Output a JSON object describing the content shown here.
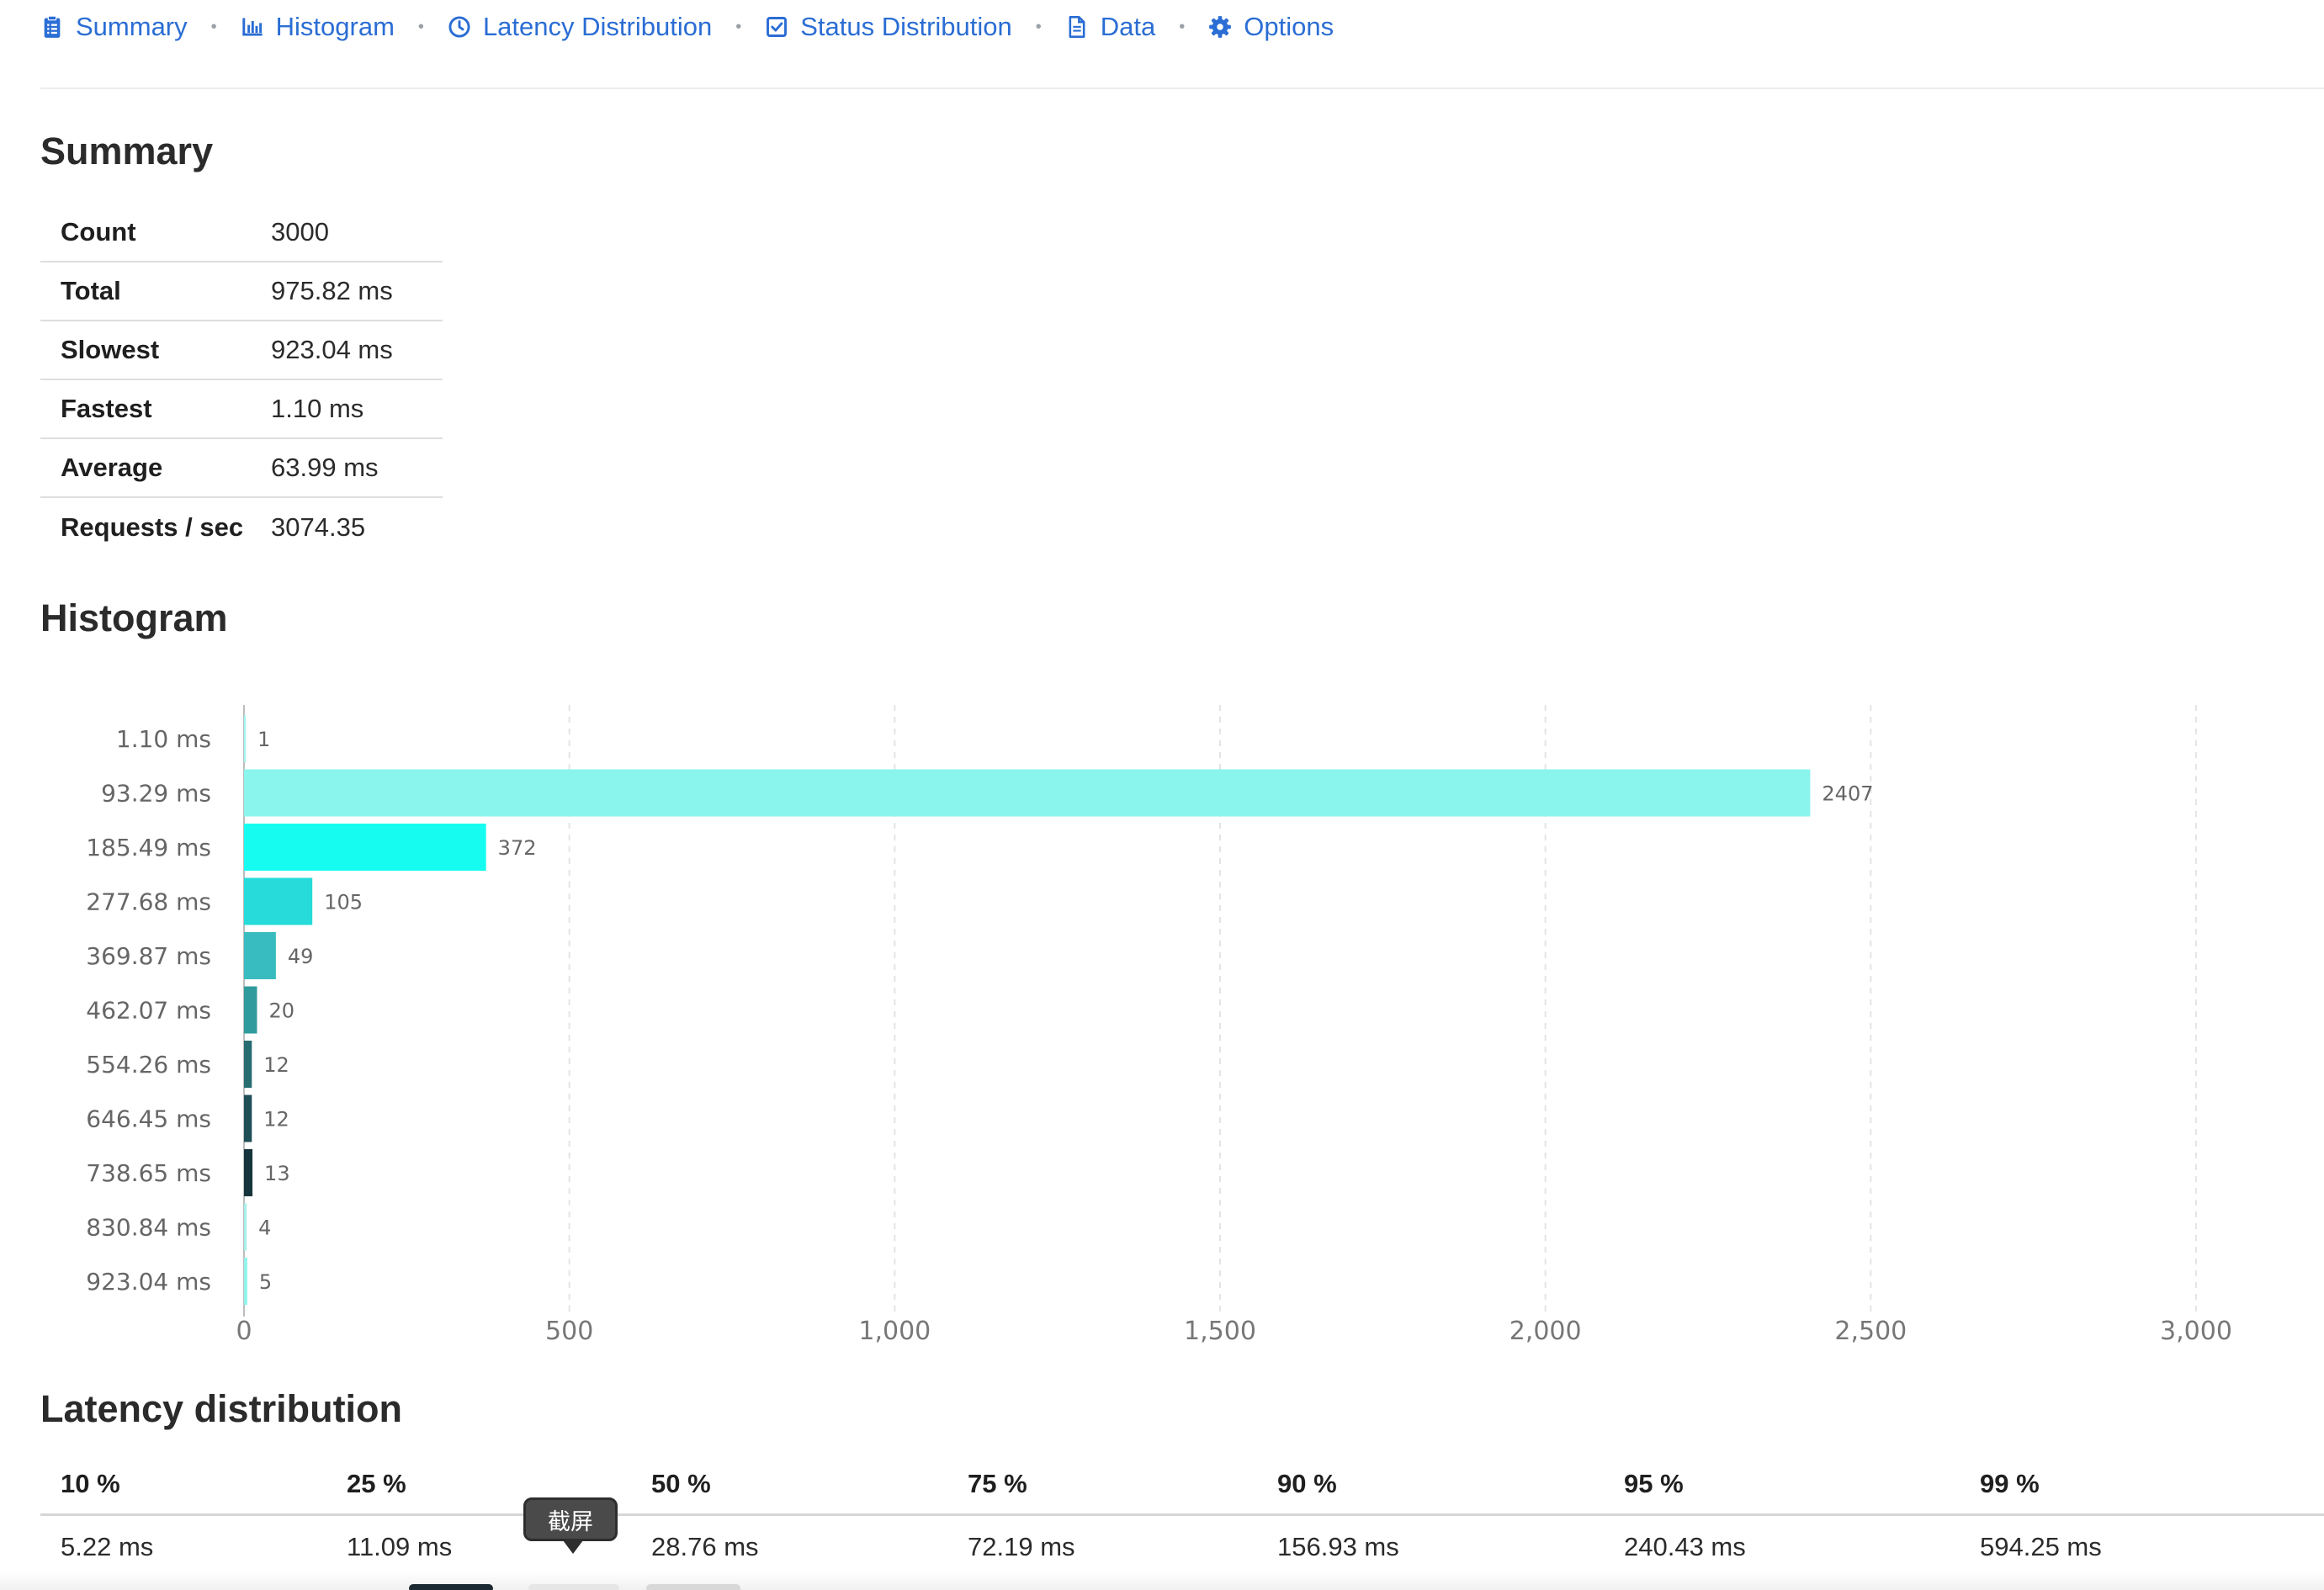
{
  "nav": {
    "items": [
      {
        "label": "Summary",
        "icon": "clipboard-icon"
      },
      {
        "label": "Histogram",
        "icon": "bar-chart-icon"
      },
      {
        "label": "Latency Distribution",
        "icon": "clock-icon"
      },
      {
        "label": "Status Distribution",
        "icon": "check-square-icon"
      },
      {
        "label": "Data",
        "icon": "document-icon"
      },
      {
        "label": "Options",
        "icon": "gear-icon"
      }
    ],
    "separator": "•",
    "color": "#2a6dd4"
  },
  "summary": {
    "title": "Summary",
    "rows": [
      {
        "key": "Count",
        "value": "3000"
      },
      {
        "key": "Total",
        "value": "975.82 ms"
      },
      {
        "key": "Slowest",
        "value": "923.04 ms"
      },
      {
        "key": "Fastest",
        "value": "1.10 ms"
      },
      {
        "key": "Average",
        "value": "63.99 ms"
      },
      {
        "key": "Requests / sec",
        "value": "3074.35"
      }
    ]
  },
  "histogram": {
    "title": "Histogram"
  },
  "chart_data": {
    "type": "bar",
    "orientation": "horizontal",
    "categories": [
      "1.10 ms",
      "93.29 ms",
      "185.49 ms",
      "277.68 ms",
      "369.87 ms",
      "462.07 ms",
      "554.26 ms",
      "646.45 ms",
      "738.65 ms",
      "830.84 ms",
      "923.04 ms"
    ],
    "values": [
      1,
      2407,
      372,
      105,
      49,
      20,
      12,
      12,
      13,
      4,
      5
    ],
    "data_labels": [
      "1",
      "2407",
      "372",
      "105",
      "49",
      "20",
      "12",
      "12",
      "13",
      "4",
      "5"
    ],
    "colors": [
      "#a0f7f0",
      "#8af5ed",
      "#17fcf1",
      "#26dbd9",
      "#38bcbf",
      "#309b9c",
      "#266c70",
      "#1f4f56",
      "#17343c",
      "#a6f0ea",
      "#8ef4ec"
    ],
    "xlim": [
      0,
      3000
    ],
    "xticks": [
      0,
      500,
      1000,
      1500,
      2000,
      2500,
      3000
    ],
    "xtick_labels": [
      "0",
      "500",
      "1,000",
      "1,500",
      "2,000",
      "2,500",
      "3,000"
    ],
    "grid": true,
    "title": "",
    "xlabel": "",
    "ylabel": ""
  },
  "latency": {
    "title": "Latency distribution",
    "headers": [
      "10 %",
      "25 %",
      "50 %",
      "75 %",
      "90 %",
      "95 %",
      "99 %"
    ],
    "values": [
      "5.22 ms",
      "11.09 ms",
      "28.76 ms",
      "72.19 ms",
      "156.93 ms",
      "240.43 ms",
      "594.25 ms"
    ]
  },
  "tooltip": {
    "label": "截屏"
  }
}
